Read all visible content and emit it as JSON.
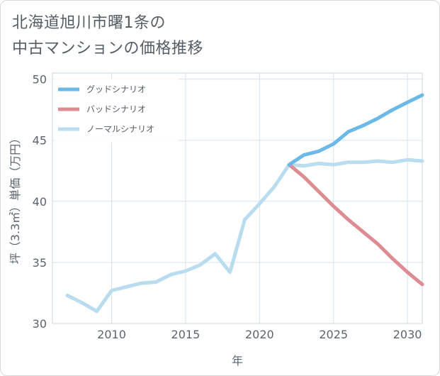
{
  "title_line1": "北海道旭川市曙1条の",
  "title_line2": "中古マンションの価格推移",
  "chart_data": {
    "type": "line",
    "xlabel": "年",
    "ylabel": "坪（3.3㎡）単価（万円）",
    "xlim": [
      2006,
      2031
    ],
    "ylim": [
      30,
      50.5
    ],
    "xticks": [
      2010,
      2015,
      2020,
      2025,
      2030
    ],
    "yticks": [
      30,
      35,
      40,
      45,
      50
    ],
    "grid": true,
    "legend_position": "top-left",
    "series": [
      {
        "name": "グッドシナリオ",
        "color": "#6cb9e8",
        "x": [
          2022,
          2023,
          2024,
          2025,
          2026,
          2027,
          2028,
          2029,
          2030,
          2031
        ],
        "y": [
          43.0,
          43.8,
          44.1,
          44.7,
          45.7,
          46.2,
          46.8,
          47.5,
          48.1,
          48.7
        ]
      },
      {
        "name": "バッドシナリオ",
        "color": "#de8c93",
        "x": [
          2022,
          2023,
          2024,
          2025,
          2026,
          2027,
          2028,
          2029,
          2030,
          2031
        ],
        "y": [
          43.0,
          42.0,
          40.8,
          39.6,
          38.5,
          37.5,
          36.5,
          35.3,
          34.2,
          33.2
        ]
      },
      {
        "name": "ノーマルシナリオ",
        "color": "#b9dcee",
        "x": [
          2007,
          2008,
          2009,
          2010,
          2011,
          2012,
          2013,
          2014,
          2015,
          2016,
          2017,
          2018,
          2019,
          2020,
          2021,
          2022,
          2023,
          2024,
          2025,
          2026,
          2027,
          2028,
          2029,
          2030,
          2031
        ],
        "y": [
          32.3,
          31.7,
          31.0,
          32.7,
          33.0,
          33.3,
          33.4,
          34.0,
          34.3,
          34.8,
          35.7,
          34.2,
          38.5,
          39.8,
          41.2,
          43.0,
          42.9,
          43.1,
          43.0,
          43.2,
          43.2,
          43.3,
          43.2,
          43.4,
          43.3
        ]
      }
    ]
  }
}
